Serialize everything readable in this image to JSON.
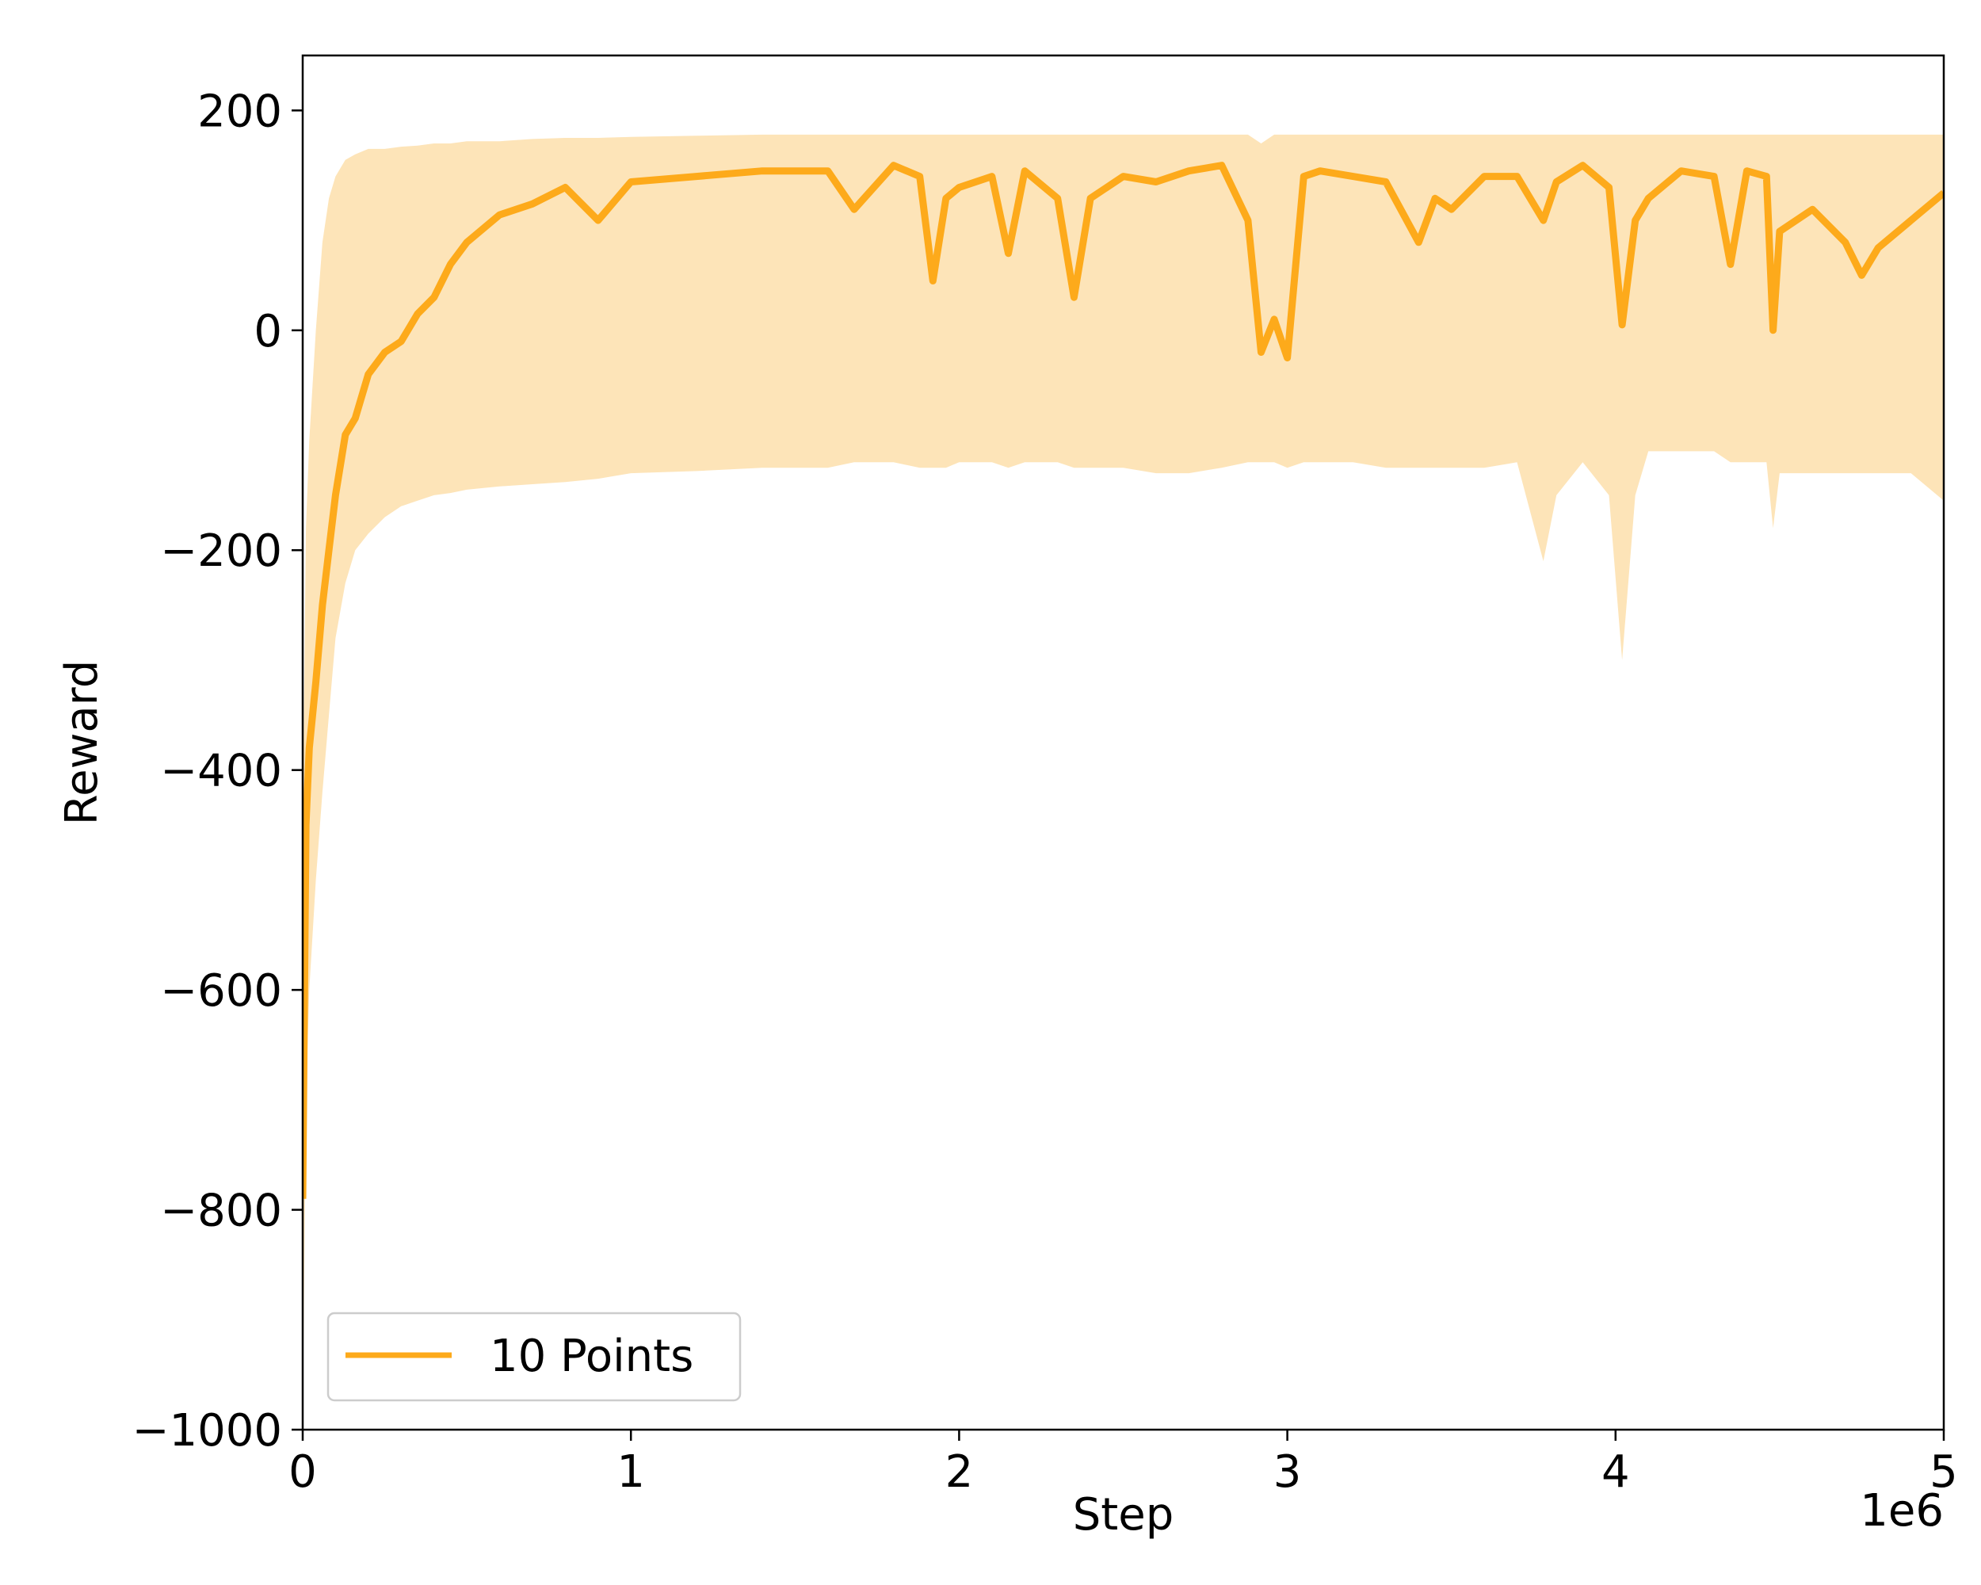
{
  "chart_data": {
    "type": "line",
    "title": "",
    "xlabel": "Step",
    "ylabel": "Reward",
    "x_offset_text": "1e6",
    "xlim": [
      0,
      5
    ],
    "ylim": [
      -1000,
      250
    ],
    "xticks": [
      0,
      1,
      2,
      3,
      4,
      5
    ],
    "xtick_labels": [
      "0",
      "1",
      "2",
      "3",
      "4",
      "5"
    ],
    "yticks": [
      -1000,
      -800,
      -600,
      -400,
      -200,
      0,
      200
    ],
    "ytick_labels": [
      "−1000",
      "−800",
      "−600",
      "−400",
      "−200",
      "0",
      "200"
    ],
    "grid": false,
    "legend_location": "lower-left",
    "series": [
      {
        "name": "10 Points",
        "color": "#fdaa1b",
        "band_color": "#fde4b8",
        "x": [
          0.0,
          0.01,
          0.02,
          0.04,
          0.06,
          0.08,
          0.1,
          0.13,
          0.16,
          0.2,
          0.25,
          0.3,
          0.35,
          0.4,
          0.45,
          0.5,
          0.6,
          0.7,
          0.8,
          0.9,
          1.0,
          1.2,
          1.4,
          1.6,
          1.68,
          1.8,
          1.88,
          1.92,
          1.96,
          2.0,
          2.1,
          2.15,
          2.2,
          2.3,
          2.35,
          2.4,
          2.5,
          2.6,
          2.7,
          2.8,
          2.88,
          2.92,
          2.96,
          3.0,
          3.05,
          3.1,
          3.2,
          3.3,
          3.4,
          3.45,
          3.5,
          3.6,
          3.7,
          3.78,
          3.82,
          3.9,
          3.98,
          4.02,
          4.06,
          4.1,
          4.2,
          4.3,
          4.35,
          4.4,
          4.46,
          4.48,
          4.5,
          4.6,
          4.7,
          4.75,
          4.8,
          4.9,
          5.0
        ],
        "mean": [
          -790,
          -450,
          -380,
          -320,
          -250,
          -200,
          -150,
          -95,
          -80,
          -40,
          -20,
          -10,
          15,
          30,
          60,
          80,
          105,
          115,
          130,
          100,
          135,
          140,
          145,
          145,
          110,
          150,
          140,
          45,
          120,
          130,
          140,
          70,
          145,
          120,
          30,
          120,
          140,
          135,
          145,
          150,
          100,
          -20,
          10,
          -25,
          140,
          145,
          140,
          135,
          80,
          120,
          110,
          140,
          140,
          100,
          135,
          150,
          130,
          5,
          100,
          120,
          145,
          140,
          60,
          145,
          140,
          0,
          90,
          110,
          80,
          50,
          75,
          100,
          125
        ],
        "upper": [
          -450,
          -180,
          -100,
          0,
          80,
          120,
          140,
          155,
          160,
          165,
          165,
          167,
          168,
          170,
          170,
          172,
          172,
          174,
          175,
          175,
          176,
          177,
          178,
          178,
          178,
          178,
          178,
          178,
          178,
          178,
          178,
          178,
          178,
          178,
          178,
          178,
          178,
          178,
          178,
          178,
          178,
          170,
          178,
          178,
          178,
          178,
          178,
          178,
          178,
          178,
          178,
          178,
          178,
          178,
          178,
          178,
          178,
          178,
          178,
          178,
          178,
          178,
          178,
          178,
          178,
          178,
          178,
          178,
          178,
          178,
          178,
          178,
          178
        ],
        "lower": [
          -1000,
          -700,
          -600,
          -500,
          -420,
          -350,
          -280,
          -230,
          -200,
          -185,
          -170,
          -160,
          -155,
          -150,
          -148,
          -145,
          -142,
          -140,
          -138,
          -135,
          -130,
          -128,
          -125,
          -125,
          -120,
          -120,
          -125,
          -125,
          -125,
          -120,
          -120,
          -125,
          -120,
          -120,
          -125,
          -125,
          -125,
          -130,
          -130,
          -125,
          -120,
          -120,
          -120,
          -125,
          -120,
          -120,
          -120,
          -125,
          -125,
          -125,
          -125,
          -125,
          -120,
          -210,
          -150,
          -120,
          -150,
          -300,
          -150,
          -110,
          -110,
          -110,
          -120,
          -120,
          -120,
          -180,
          -130,
          -130,
          -130,
          -130,
          -130,
          -130,
          -155
        ]
      }
    ]
  }
}
